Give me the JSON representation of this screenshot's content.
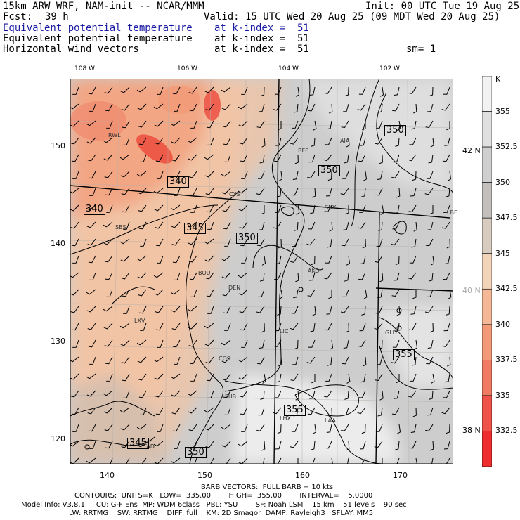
{
  "header": {
    "model": "15km ARW WRF, NAM-init -- NCAR/MMM",
    "init": "Init: 00 UTC Tue 19 Aug 25",
    "fcst_label": "Fcst:",
    "fcst_value": "39 h",
    "valid": "Valid: 15 UTC Wed 20 Aug 25 (09 MDT Wed 20 Aug 25)",
    "fields": [
      {
        "name": "Equivalent potential temperature",
        "level": "at k-index =  51",
        "color": "#1a1aa6"
      },
      {
        "name": "Equivalent potential temperature",
        "level": "at k-index =  51",
        "color": "#000000"
      },
      {
        "name": "Horizontal wind vectors",
        "level": "at k-index =  51",
        "color": "#000000"
      }
    ],
    "smoothing": "sm= 1"
  },
  "axes": {
    "top_lon": [
      "108 W",
      "106 W",
      "104 W",
      "102 W"
    ],
    "right_lat": [
      "42 N",
      "40 N",
      "38 N"
    ],
    "left_y": [
      "150",
      "140",
      "130",
      "120"
    ],
    "bottom_x": [
      "140",
      "150",
      "160",
      "170"
    ]
  },
  "cities": [
    "RWL",
    "BFF",
    "AIA",
    "CYS",
    "SNY",
    "LBF",
    "SBS",
    "BOU",
    "DEN",
    "AKO",
    "LXV",
    "LIC",
    "GLD",
    "COS",
    "PUB",
    "LHX",
    "LAA",
    "TAD"
  ],
  "contour_labels": [
    "340",
    "340",
    "345",
    "350",
    "350",
    "350",
    "355",
    "355",
    "345",
    "350"
  ],
  "colorbar": {
    "unit": "K",
    "labels": [
      "355",
      "352.5",
      "350",
      "347.5",
      "345",
      "342.5",
      "340",
      "337.5",
      "335",
      "332.5"
    ],
    "colors": [
      "#f2f2f2",
      "#e0e0e0",
      "#cfcfcf",
      "#c2bfbd",
      "#d8cbc0",
      "#f2d4b8",
      "#f5b896",
      "#f29a78",
      "#f07a62",
      "#ee5248",
      "#ee2e2e"
    ]
  },
  "footer": {
    "barbs": "BARB VECTORS:  FULL BARB = 10 kts",
    "contours": "CONTOURS:  UNITS=K   LOW=  335.00        HIGH=  355.00        INTERVAL=    5.0000",
    "model_info_1": "Model Info: V3.8.1     CU: G-F Ens  MP: WDM 6class   PBL: YSU        SF: Noah LSM    15 km    51 levels    90 sec",
    "model_info_2": "LW: RRTMG    SW: RRTMG    DIFF: full    KM: 2D Smagor  DAMP: Rayleigh3   SFLAY: MM5"
  }
}
